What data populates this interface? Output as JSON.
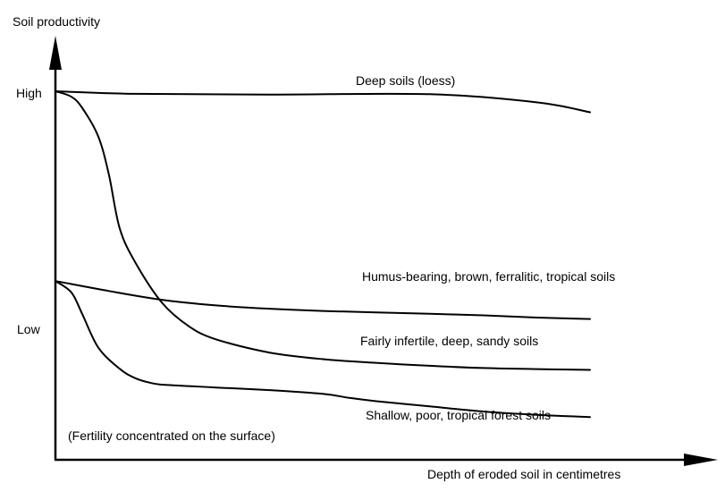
{
  "chart_data": {
    "type": "line",
    "title": "",
    "ylabel": "Soil productivity",
    "xlabel": "Depth of eroded soil in centimetres",
    "y_tick_labels": [
      "High",
      "Low"
    ],
    "grid": false,
    "x_range": [
      0,
      100
    ],
    "y_range": [
      0,
      100
    ],
    "series": [
      {
        "name": "Deep soils (loess)",
        "x": [
          0,
          15,
          40,
          70,
          90,
          100
        ],
        "y": [
          100,
          99.3,
          99.1,
          99.2,
          97,
          94.3
        ]
      },
      {
        "name": "Humus-bearing, brown, ferralitic, tropical soils",
        "x": [
          0,
          3,
          5,
          8,
          10,
          12,
          15,
          20,
          25,
          30,
          40,
          50,
          60,
          70,
          80,
          90,
          100
        ],
        "y": [
          100,
          98.5,
          95.5,
          87.8,
          77.4,
          62.9,
          53.4,
          42.5,
          36.2,
          32.7,
          29.1,
          27.3,
          26.3,
          25.5,
          24.9,
          24.6,
          24.4
        ]
      },
      {
        "name": "Fairly infertile, deep, sandy soils",
        "x": [
          0,
          10,
          20,
          30,
          40,
          50,
          60,
          70,
          80,
          90,
          100
        ],
        "y": [
          48.5,
          45.8,
          43.4,
          41.9,
          41.0,
          40.4,
          40.0,
          39.6,
          39.2,
          38.6,
          38.2
        ]
      },
      {
        "name": "Shallow, poor, tropical forest soils",
        "x": [
          0,
          3,
          5,
          8,
          12,
          15,
          18,
          20,
          25,
          30,
          40,
          50,
          55,
          60,
          70,
          80,
          90,
          100
        ],
        "y": [
          48.5,
          45.4,
          39.6,
          30.5,
          24.7,
          22.1,
          20.8,
          20.4,
          20.0,
          19.6,
          18.9,
          17.9,
          16.8,
          15.9,
          14.5,
          13.1,
          12.2,
          11.6
        ]
      }
    ],
    "annotations": [
      "(Fertility concentrated on the surface)"
    ]
  }
}
